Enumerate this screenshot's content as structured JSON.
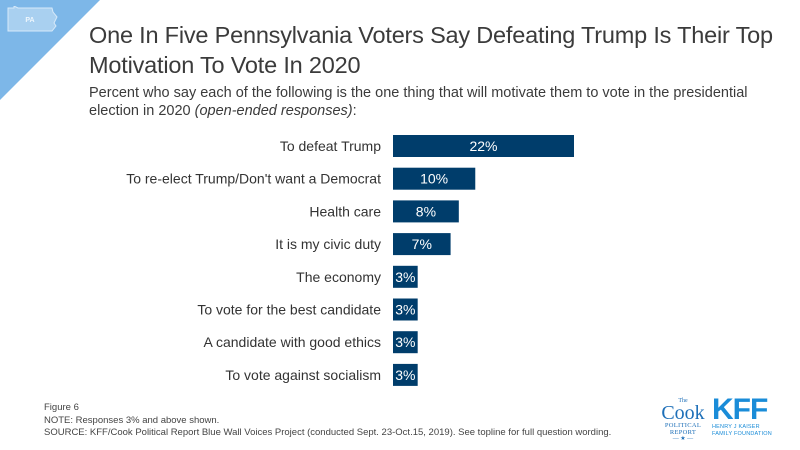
{
  "badge": {
    "state": "PA",
    "color": "#7db7e8"
  },
  "title": "One In Five Pennsylvania Voters Say Defeating Trump Is Their Top Motivation To Vote In 2020",
  "subtitle": {
    "main": "Percent who say each of the following is the one thing that will motivate them to vote in the presidential election in 2020 ",
    "italic": "(open-ended responses)",
    "tail": ":"
  },
  "chart_data": {
    "type": "bar",
    "orientation": "horizontal",
    "title": "",
    "xlabel": "",
    "ylabel": "",
    "xlim": [
      0,
      22
    ],
    "grid": false,
    "bar_color": "#003d6b",
    "categories": [
      "To defeat Trump",
      "To re-elect Trump/Don't want a Democrat",
      "Health care",
      "It is my civic duty",
      "The economy",
      "To vote for the best candidate",
      "A candidate with good ethics",
      "To vote against socialism"
    ],
    "values": [
      22,
      10,
      8,
      7,
      3,
      3,
      3,
      3
    ],
    "labels": [
      "22%",
      "10%",
      "8%",
      "7%",
      "3%",
      "3%",
      "3%",
      "3%"
    ]
  },
  "footer": {
    "figure": "Figure 6",
    "note": "NOTE: Responses 3% and above shown.",
    "source": "SOURCE: KFF/Cook Political Report Blue Wall Voices Project (conducted Sept. 23-Oct.15, 2019). See topline for full question wording."
  },
  "logos": {
    "cook": {
      "the": "The",
      "name": "Cook",
      "line1": "POLITICAL",
      "line2": "REPORT",
      "star": "— ★ —",
      "color": "#1d6fb8"
    },
    "kff": {
      "name": "KFF",
      "line1": "HENRY J KAISER",
      "line2": "FAMILY FOUNDATION",
      "color": "#1a8cd8"
    }
  }
}
